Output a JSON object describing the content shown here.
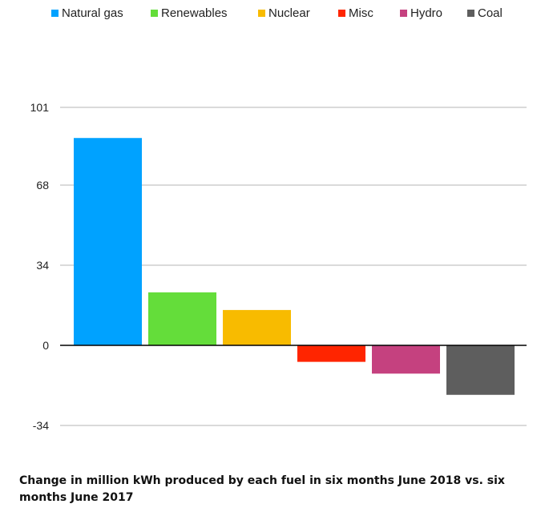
{
  "chart_data": {
    "type": "bar",
    "categories": [
      "Natural gas",
      "Renewables",
      "Nuclear",
      "Misc",
      "Hydro",
      "Coal"
    ],
    "values": [
      88,
      22.5,
      15,
      -7,
      -12,
      -21
    ],
    "colors": [
      "#00a2ff",
      "#64dd3a",
      "#f8bb00",
      "#ff2500",
      "#c5417f",
      "#5e5e5e"
    ],
    "ylim": [
      -34,
      101
    ],
    "yticks": [
      -34,
      0,
      34,
      68,
      101
    ],
    "grid": true,
    "legend_position": "top",
    "title": "",
    "xlabel": "",
    "ylabel": ""
  },
  "caption": "Change in million kWh produced by each fuel in six months June 2018 vs. six months June 2017"
}
